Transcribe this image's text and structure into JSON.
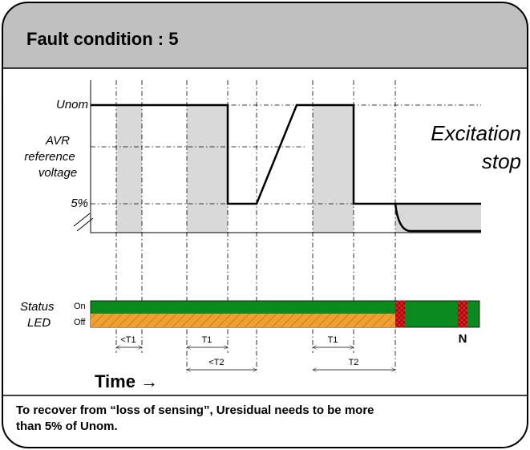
{
  "header": {
    "title": "Fault condition : 5"
  },
  "levels": {
    "unom": "Unom",
    "avr": [
      "AVR",
      "reference",
      "voltage"
    ],
    "five": "5%"
  },
  "state": [
    "Excitation",
    "stop"
  ],
  "led": {
    "status": "Status",
    "led": "LED",
    "on": "On",
    "off": "Off",
    "n": "N"
  },
  "timings": {
    "lt_t1": "<T1",
    "t1_a": "T1",
    "lt_t2": "<T2",
    "t1_b": "T1",
    "t2": "T2"
  },
  "time": "Time →",
  "footer": [
    "To recover from “loss of sensing”, Uresidual needs to be more",
    "than 5% of Unom."
  ]
}
